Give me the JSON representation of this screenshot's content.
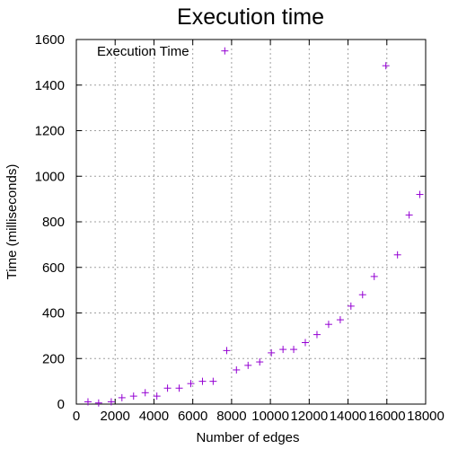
{
  "chart_data": {
    "type": "scatter",
    "title": "Execution time",
    "xlabel": "Number of edges",
    "ylabel": "Time (milliseconds)",
    "xlim": [
      0,
      18000
    ],
    "ylim": [
      0,
      1600
    ],
    "xticks": [
      0,
      2000,
      4000,
      6000,
      8000,
      10000,
      12000,
      14000,
      16000,
      18000
    ],
    "yticks": [
      0,
      200,
      400,
      600,
      800,
      1000,
      1200,
      1400,
      1600
    ],
    "grid": true,
    "legend": "top-left",
    "series": [
      {
        "name": "Execution Time",
        "color": "#9400d3",
        "marker": "plus",
        "x": [
          600,
          1150,
          1800,
          2350,
          2950,
          3550,
          4150,
          4700,
          5300,
          5900,
          6500,
          7050,
          7650,
          7750,
          8250,
          8850,
          9450,
          10050,
          10650,
          11200,
          11800,
          12400,
          13000,
          13600,
          14150,
          14750,
          15350,
          15950,
          16550,
          17150,
          17700
        ],
        "y": [
          10,
          5,
          10,
          28,
          35,
          50,
          35,
          70,
          70,
          90,
          100,
          100,
          1550,
          235,
          150,
          170,
          185,
          225,
          240,
          240,
          270,
          305,
          350,
          370,
          430,
          480,
          560,
          1485,
          655,
          830,
          920
        ]
      }
    ]
  }
}
